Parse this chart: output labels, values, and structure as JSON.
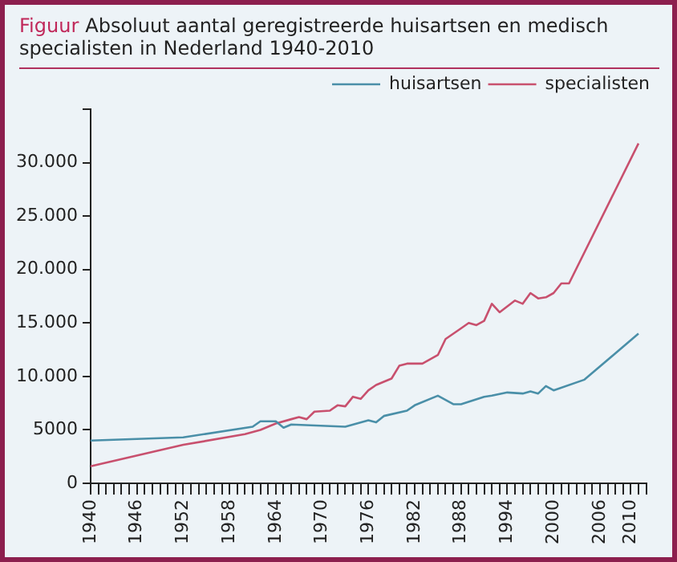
{
  "chart_data": {
    "type": "line",
    "title": "Figuur",
    "subtitle": "Absoluut aantal geregistreerde huisartsen en medisch specialisten in Nederland 1940-2010",
    "series": [
      {
        "name": "huisartsen",
        "color": "#4a8fa8",
        "x": [
          1940,
          1952,
          1961,
          1962,
          1964,
          1965,
          1966,
          1973,
          1976,
          1977,
          1978,
          1981,
          1982,
          1985,
          1987,
          1988,
          1991,
          1992,
          1994,
          1996,
          1997,
          1998,
          1999,
          2000,
          2004,
          2011
        ],
        "values": [
          4000,
          4300,
          5300,
          5800,
          5800,
          5200,
          5500,
          5300,
          5900,
          5700,
          6300,
          6800,
          7300,
          8200,
          7400,
          7400,
          8100,
          8200,
          8500,
          8400,
          8600,
          8400,
          9100,
          8700,
          9700,
          14000
        ]
      },
      {
        "name": "specialisten",
        "color": "#c8506e",
        "x": [
          1940,
          1952,
          1960,
          1962,
          1964,
          1966,
          1967,
          1968,
          1969,
          1971,
          1972,
          1973,
          1974,
          1975,
          1976,
          1977,
          1979,
          1980,
          1981,
          1983,
          1985,
          1986,
          1988,
          1989,
          1990,
          1991,
          1992,
          1993,
          1995,
          1996,
          1997,
          1998,
          1999,
          2000,
          2001,
          2002,
          2011
        ],
        "values": [
          1600,
          3600,
          4600,
          5000,
          5600,
          6000,
          6200,
          6000,
          6700,
          6800,
          7300,
          7200,
          8100,
          7900,
          8700,
          9200,
          9800,
          11000,
          11200,
          11200,
          12000,
          13500,
          14500,
          15000,
          14800,
          15200,
          16800,
          16000,
          17100,
          16800,
          17800,
          17300,
          17400,
          17800,
          18700,
          18700,
          31800
        ]
      }
    ],
    "xlim": [
      1940,
      2012
    ],
    "xticks": [
      1940,
      {
        "value": 1941,
        "label": null
      },
      {
        "value": 1942,
        "label": null
      },
      {
        "value": 1943,
        "label": null
      },
      {
        "value": 1944,
        "label": null
      },
      {
        "value": 1945,
        "label": null
      },
      1946,
      {
        "value": 1947,
        "label": null
      },
      {
        "value": 1948,
        "label": null
      },
      {
        "value": 1949,
        "label": null
      },
      {
        "value": 1950,
        "label": null
      },
      {
        "value": 1951,
        "label": null
      },
      1952,
      {
        "value": 1953,
        "label": null
      },
      {
        "value": 1954,
        "label": null
      },
      {
        "value": 1955,
        "label": null
      },
      {
        "value": 1956,
        "label": null
      },
      {
        "value": 1957,
        "label": null
      },
      1958,
      {
        "value": 1959,
        "label": null
      },
      {
        "value": 1960,
        "label": null
      },
      {
        "value": 1961,
        "label": null
      },
      {
        "value": 1962,
        "label": null
      },
      {
        "value": 1963,
        "label": null
      },
      1964,
      {
        "value": 1965,
        "label": null
      },
      {
        "value": 1966,
        "label": null
      },
      {
        "value": 1967,
        "label": null
      },
      {
        "value": 1968,
        "label": null
      },
      {
        "value": 1969,
        "label": null
      },
      1970,
      {
        "value": 1971,
        "label": null
      },
      {
        "value": 1972,
        "label": null
      },
      {
        "value": 1973,
        "label": null
      },
      {
        "value": 1974,
        "label": null
      },
      {
        "value": 1975,
        "label": null
      },
      1976,
      {
        "value": 1977,
        "label": null
      },
      {
        "value": 1978,
        "label": null
      },
      {
        "value": 1979,
        "label": null
      },
      {
        "value": 1980,
        "label": null
      },
      {
        "value": 1981,
        "label": null
      },
      1982,
      {
        "value": 1983,
        "label": null
      },
      {
        "value": 1984,
        "label": null
      },
      {
        "value": 1985,
        "label": null
      },
      {
        "value": 1986,
        "label": null
      },
      {
        "value": 1987,
        "label": null
      },
      1988,
      {
        "value": 1989,
        "label": null
      },
      {
        "value": 1990,
        "label": null
      },
      {
        "value": 1991,
        "label": null
      },
      {
        "value": 1992,
        "label": null
      },
      {
        "value": 1993,
        "label": null
      },
      1994,
      {
        "value": 1995,
        "label": null
      },
      {
        "value": 1996,
        "label": null
      },
      {
        "value": 1997,
        "label": null
      },
      {
        "value": 1998,
        "label": null
      },
      {
        "value": 1999,
        "label": null
      },
      2000,
      {
        "value": 2001,
        "label": null
      },
      {
        "value": 2002,
        "label": null
      },
      {
        "value": 2003,
        "label": null
      },
      {
        "value": 2004,
        "label": null
      },
      {
        "value": 2005,
        "label": null
      },
      2006,
      {
        "value": 2007,
        "label": null
      },
      {
        "value": 2008,
        "label": null
      },
      {
        "value": 2009,
        "label": null
      },
      2010,
      {
        "value": 2011,
        "label": null
      },
      {
        "value": 2012,
        "label": null
      }
    ],
    "ylim": [
      0,
      35000
    ],
    "yticks": [
      0,
      {
        "value": 5000,
        "label": "5000"
      },
      {
        "value": 10000,
        "label": "10.000"
      },
      {
        "value": 15000,
        "label": "15.000"
      },
      {
        "value": 20000,
        "label": "20.000"
      },
      {
        "value": 25000,
        "label": "25.000"
      },
      {
        "value": 30000,
        "label": "30.000"
      },
      {
        "value": 35000,
        "label": null
      }
    ],
    "grid": false,
    "legend": "top right",
    "marker": "none",
    "line_style": "solid"
  }
}
